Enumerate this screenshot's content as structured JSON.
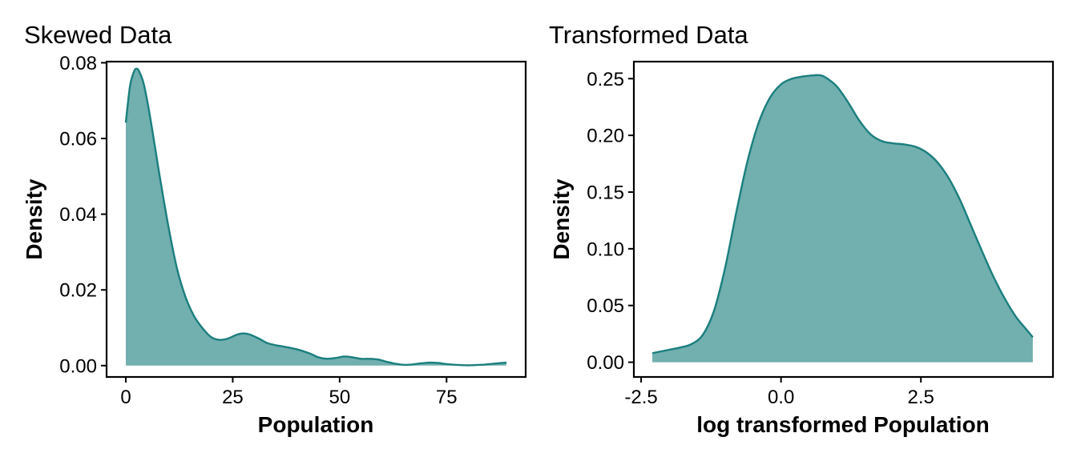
{
  "chart_data": [
    {
      "type": "area",
      "title": "Skewed Data",
      "xlabel": "Population",
      "ylabel": "Density",
      "xlim": [
        -4.5,
        93.5
      ],
      "ylim": [
        -0.003,
        0.0803
      ],
      "xticks": [
        0,
        25,
        50,
        75
      ],
      "xtick_labels": [
        "0",
        "25",
        "50",
        "75"
      ],
      "yticks": [
        0,
        0.02,
        0.04,
        0.06,
        0.08
      ],
      "ytick_labels": [
        "0.00",
        "0.02",
        "0.04",
        "0.06",
        "0.08"
      ],
      "grid": false,
      "colors": {
        "fill": "#72AFAF",
        "line": "#1A7F7E"
      },
      "series": [
        {
          "x": [
            0,
            1,
            2,
            2.5,
            3,
            4,
            5,
            6,
            7,
            8,
            10,
            12,
            14,
            16,
            18,
            20,
            22,
            24,
            26,
            27.5,
            29,
            31,
            33,
            35,
            37,
            40,
            43,
            45,
            47,
            49,
            51,
            53,
            55,
            57,
            59,
            61,
            63,
            65,
            67,
            69,
            71,
            73,
            75,
            77,
            79,
            81,
            83,
            85,
            87,
            89
          ],
          "y": [
            0.0642,
            0.074,
            0.0779,
            0.0784,
            0.078,
            0.0752,
            0.07,
            0.0635,
            0.0565,
            0.0495,
            0.0365,
            0.0255,
            0.018,
            0.013,
            0.0098,
            0.0075,
            0.0068,
            0.0072,
            0.0082,
            0.0085,
            0.0082,
            0.0072,
            0.006,
            0.0054,
            0.005,
            0.0043,
            0.0032,
            0.0022,
            0.0018,
            0.002,
            0.0024,
            0.0022,
            0.0018,
            0.0018,
            0.0016,
            0.001,
            0.0005,
            0.0002,
            0.0003,
            0.0006,
            0.0008,
            0.0007,
            0.0004,
            0.0002,
            0.0001,
            0.0001,
            0.0002,
            0.0004,
            0.0006,
            0.0008
          ]
        }
      ]
    },
    {
      "type": "area",
      "title": "Transformed Data",
      "xlabel": "log transformed Population",
      "ylabel": "Density",
      "xlim": [
        -2.63,
        4.86
      ],
      "ylim": [
        -0.013,
        0.265
      ],
      "xticks": [
        -2.5,
        0,
        2.5
      ],
      "xtick_labels": [
        "-2.5",
        "0.0",
        "2.5"
      ],
      "yticks": [
        0,
        0.05,
        0.1,
        0.15,
        0.2,
        0.25
      ],
      "ytick_labels": [
        "0.00",
        "0.05",
        "0.10",
        "0.15",
        "0.20",
        "0.25"
      ],
      "grid": false,
      "colors": {
        "fill": "#72AFAF",
        "line": "#1A7F7E"
      },
      "series": [
        {
          "x": [
            -2.3,
            -2.0,
            -1.8,
            -1.6,
            -1.4,
            -1.2,
            -1.0,
            -0.8,
            -0.6,
            -0.4,
            -0.2,
            0.0,
            0.2,
            0.4,
            0.6,
            0.7,
            0.8,
            1.0,
            1.2,
            1.4,
            1.6,
            1.8,
            2.0,
            2.2,
            2.4,
            2.6,
            2.8,
            3.0,
            3.2,
            3.4,
            3.6,
            3.8,
            4.0,
            4.2,
            4.4,
            4.5
          ],
          "y": [
            0.008,
            0.011,
            0.013,
            0.016,
            0.024,
            0.045,
            0.083,
            0.132,
            0.177,
            0.211,
            0.233,
            0.245,
            0.25,
            0.252,
            0.253,
            0.253,
            0.251,
            0.243,
            0.229,
            0.213,
            0.201,
            0.195,
            0.193,
            0.192,
            0.19,
            0.185,
            0.176,
            0.162,
            0.143,
            0.12,
            0.097,
            0.075,
            0.056,
            0.04,
            0.028,
            0.022
          ]
        }
      ]
    }
  ]
}
